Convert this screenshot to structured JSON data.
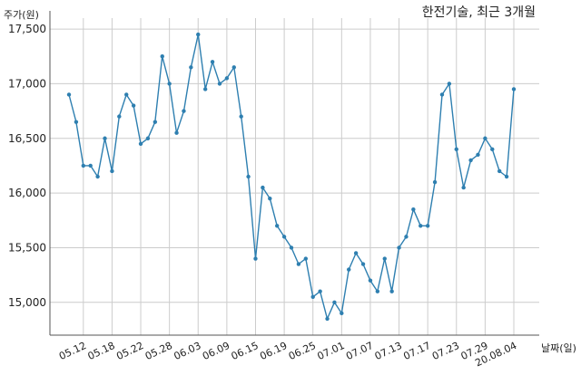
{
  "chart_data": {
    "type": "line",
    "title": "한전기술, 최근 3개월",
    "xlabel": "날짜(일)",
    "ylabel": "주가(원)",
    "ylim": [
      14700,
      17600
    ],
    "yticks": [
      15000,
      15500,
      16000,
      16500,
      17000,
      17500
    ],
    "ytick_labels": [
      "15,000",
      "15,500",
      "16,000",
      "16,500",
      "17,000",
      "17,500"
    ],
    "xtick_labels": [
      "05.12",
      "05.18",
      "05.22",
      "05.28",
      "06.03",
      "06.09",
      "06.15",
      "06.19",
      "06.25",
      "07.01",
      "07.07",
      "07.13",
      "07.17",
      "07.23",
      "07.29",
      "20.08.04"
    ],
    "xtick_positions": [
      2,
      6,
      10,
      14,
      18,
      22,
      26,
      30,
      34,
      38,
      42,
      46,
      50,
      54,
      58,
      62
    ],
    "grid": true,
    "series": [
      {
        "color": "#2e7fb0",
        "values": [
          16900,
          16650,
          16250,
          16250,
          16150,
          16500,
          16200,
          16700,
          16900,
          16800,
          16450,
          16500,
          16650,
          17250,
          17000,
          16550,
          16750,
          17150,
          17450,
          16950,
          17200,
          17000,
          17050,
          17150,
          16700,
          16150,
          15400,
          16050,
          15950,
          15700,
          15600,
          15500,
          15350,
          15400,
          15050,
          15100,
          14850,
          15000,
          14900,
          15300,
          15450,
          15350,
          15200,
          15100,
          15400,
          15100,
          15500,
          15600,
          15850,
          15700,
          15700,
          16100,
          16900,
          17000,
          16400,
          16050,
          16300,
          16350,
          16500,
          16400,
          16200,
          16150,
          16950
        ]
      }
    ]
  }
}
